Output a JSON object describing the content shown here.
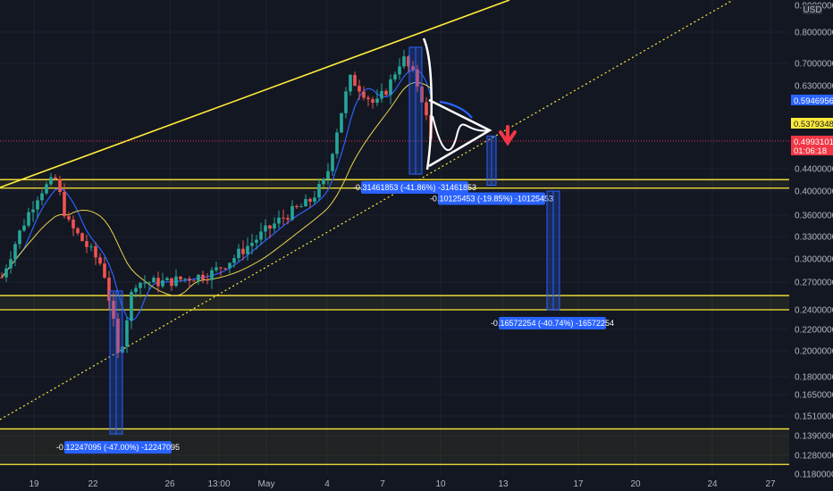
{
  "chart_data": {
    "type": "candlestick",
    "currency": "USD",
    "y_ticks": [
      "0.90000000",
      "0.80000000",
      "0.70000000",
      "0.63000000",
      "0.59469568",
      "0.53793488",
      "0.49931013",
      "0.44000000",
      "0.40000000",
      "0.36000000",
      "0.33000000",
      "0.30000000",
      "0.27000000",
      "0.24000000",
      "0.22000000",
      "0.20000000",
      "0.18000000",
      "0.16500000",
      "0.15100000",
      "0.13900000",
      "0.12800000",
      "0.11800000"
    ],
    "x_ticks": [
      "19",
      "22",
      "26",
      "13:00",
      "May",
      "4",
      "7",
      "10",
      "13",
      "17",
      "20",
      "24",
      "27"
    ],
    "price_tags": [
      {
        "label": "0.59469568",
        "color": "#2962ff",
        "text_color": "#ffffff"
      },
      {
        "label": "0.53793488",
        "color": "#ffeb3b",
        "text_color": "#131722"
      },
      {
        "label": "0.49931013",
        "sub": "01:06:18",
        "color": "#f23645",
        "text_color": "#ffffff"
      }
    ],
    "measurements": [
      {
        "label": "-0.31461853 (-41.86%) -31461853",
        "from": 0.75,
        "to": 0.43
      },
      {
        "label": "-0.10125453 (-19.85%) -10125453",
        "from": 0.51,
        "to": 0.41
      },
      {
        "label": "-0.16572254 (-40.74%) -16572254",
        "from": 0.4,
        "to": 0.24
      },
      {
        "label": "-0.12247095 (-47.00%) -12247095",
        "from": 0.26,
        "to": 0.14
      }
    ],
    "zones": [
      {
        "top": 0.42,
        "bottom": 0.405
      },
      {
        "top": 0.255,
        "bottom": 0.24
      },
      {
        "top": 0.143,
        "bottom": 0.123
      }
    ],
    "last_price": 0.49931013
  }
}
